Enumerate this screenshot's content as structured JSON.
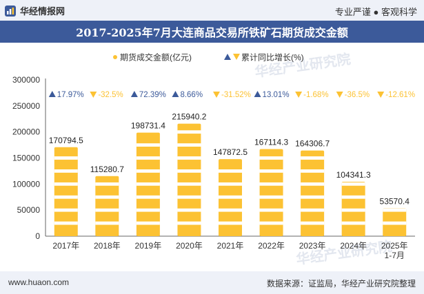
{
  "header": {
    "brand": "华经情报网",
    "tagline": "专业严谨 ● 客观科学"
  },
  "title": "2017-2025年7月大连商品交易所铁矿石期货成交金额",
  "footer": {
    "url": "www.huaon.com",
    "source": "数据来源：证监局，华经产业研究院整理"
  },
  "watermark": "华经产业研究院",
  "colors": {
    "bar": "#fcc233",
    "bar_band": "#ffffff",
    "up": "#3c5a9a",
    "down": "#fcc233",
    "axis": "#333333",
    "title_bg": "#3c5a9a",
    "top_bg": "#eef1f8"
  },
  "chart_data": {
    "type": "bar",
    "title": "2017-2025年7月大连商品交易所铁矿石期货成交金额",
    "categories": [
      "2017年",
      "2018年",
      "2019年",
      "2020年",
      "2021年",
      "2022年",
      "2023年",
      "2024年",
      "2025年\n1-7月"
    ],
    "series": [
      {
        "name": "期货成交金额(亿元)",
        "values": [
          170794.5,
          115280.7,
          198731.4,
          215940.2,
          147872.5,
          167114.3,
          164306.7,
          104341.3,
          53570.4
        ]
      }
    ],
    "growth": {
      "name": "累计同比增长(%)",
      "values": [
        "17.97%",
        "-32.5%",
        "72.39%",
        "8.66%",
        "-31.52%",
        "13.01%",
        "-1.68%",
        "-36.5%",
        "-12.61%"
      ],
      "direction": [
        "up",
        "down",
        "up",
        "up",
        "down",
        "up",
        "down",
        "down",
        "down"
      ]
    },
    "yticks": [
      0,
      50000,
      100000,
      150000,
      200000,
      250000,
      300000
    ],
    "ylim": [
      0,
      300000
    ],
    "legend": [
      "期货成交金额(亿元)",
      "累计同比增长(%)"
    ],
    "legend_position": "top-center"
  }
}
